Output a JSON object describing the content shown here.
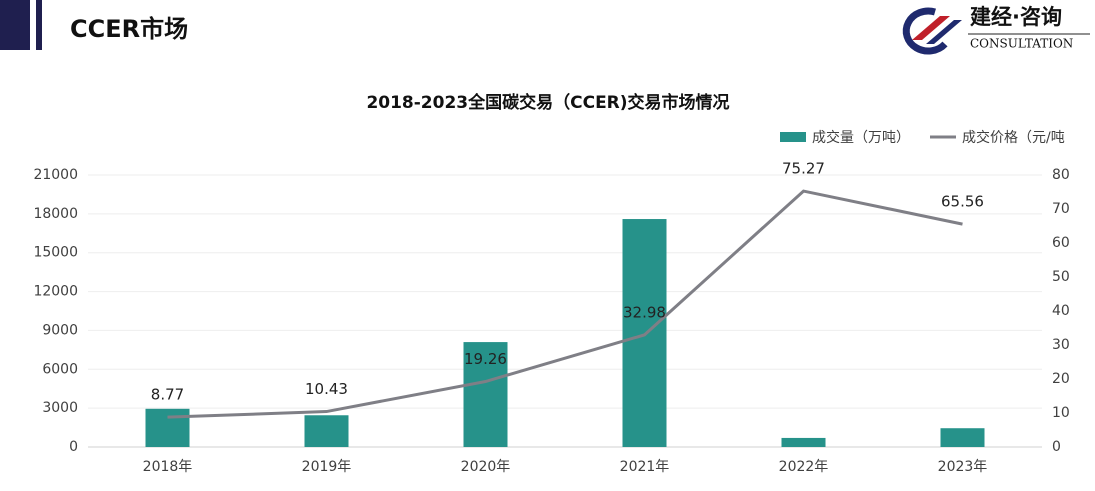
{
  "header": {
    "title": "CCER市场",
    "logo_name": "建经·咨询",
    "logo_sub": "CONSULTATION"
  },
  "chart_data": {
    "type": "bar",
    "title": "2018-2023全国碳交易（CCER)交易市场情况",
    "categories": [
      "2018年",
      "2019年",
      "2020年",
      "2021年",
      "2022年",
      "2023年"
    ],
    "series": [
      {
        "name": "成交量（万吨）",
        "type": "bar",
        "color": "#26928a",
        "values": [
          2950,
          2450,
          8100,
          17600,
          700,
          1450
        ]
      },
      {
        "name": "成交价格（元/吨",
        "type": "line",
        "axis": "y2",
        "color": "#7f7f86",
        "values": [
          8.77,
          10.43,
          19.26,
          32.98,
          75.27,
          65.56
        ]
      }
    ],
    "ylim": [
      0,
      21000
    ],
    "yticks": [
      0,
      3000,
      6000,
      9000,
      12000,
      15000,
      18000,
      21000
    ],
    "y2lim": [
      0,
      80
    ],
    "y2ticks": [
      0,
      10,
      20,
      30,
      40,
      50,
      60,
      70,
      80
    ],
    "grid": true,
    "legend": "top-right"
  }
}
